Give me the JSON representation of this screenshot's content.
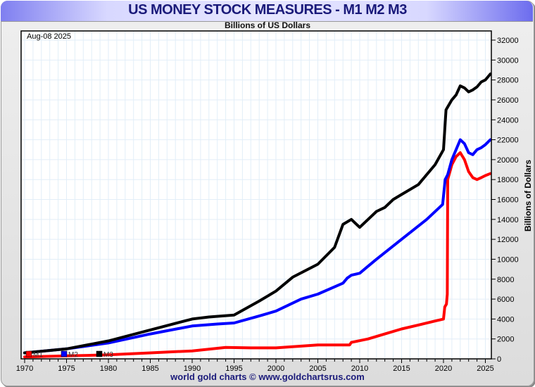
{
  "header": {
    "title": "US MONEY STOCK MEASURES - M1 M2 M3",
    "subtitle": "Billions of US Dollars",
    "date_label": "Aug-08  2025"
  },
  "footer": {
    "credit": "world gold charts © www.goldchartsrus.com"
  },
  "chart_data": {
    "type": "line",
    "title": "US MONEY STOCK MEASURES - M1 M2 M3",
    "subtitle": "Billions of US Dollars",
    "xlabel": "",
    "ylabel": "Billions of Dollars",
    "xlim": [
      1970,
      2026
    ],
    "ylim": [
      0,
      32000
    ],
    "x_ticks": [
      1970,
      1975,
      1980,
      1985,
      1990,
      1995,
      2000,
      2005,
      2010,
      2015,
      2020,
      2025
    ],
    "y_ticks": [
      0,
      2000,
      4000,
      6000,
      8000,
      10000,
      12000,
      14000,
      16000,
      18000,
      20000,
      22000,
      24000,
      26000,
      28000,
      30000,
      32000
    ],
    "grid": true,
    "legend_position": "bottom-left",
    "series": [
      {
        "name": "M1",
        "color": "#ff0000",
        "x": [
          1970,
          1975,
          1980,
          1985,
          1990,
          1994,
          1997,
          2000,
          2005,
          2008.8,
          2009,
          2011,
          2013,
          2015,
          2017,
          2019,
          2020,
          2020.15,
          2020.35,
          2020.45,
          2020.5,
          2021,
          2021.5,
          2022,
          2022.5,
          2023,
          2023.5,
          2024,
          2024.5,
          2025,
          2025.6
        ],
        "y": [
          200,
          300,
          400,
          600,
          800,
          1150,
          1100,
          1100,
          1400,
          1400,
          1650,
          2000,
          2500,
          3000,
          3400,
          3800,
          4000,
          5200,
          5500,
          6500,
          18000,
          19500,
          20300,
          20700,
          20000,
          18800,
          18200,
          18000,
          18200,
          18400,
          18600
        ]
      },
      {
        "name": "M2",
        "color": "#0000ff",
        "x": [
          1970,
          1975,
          1980,
          1985,
          1990,
          1993,
          1995,
          1998,
          2000,
          2003,
          2005,
          2008,
          2008.5,
          2009,
          2010,
          2011,
          2012,
          2015,
          2018,
          2019.9,
          2020.2,
          2020.5,
          2021,
          2021.5,
          2022,
          2022.5,
          2023,
          2023.5,
          2024,
          2024.5,
          2025,
          2025.6
        ],
        "y": [
          600,
          1000,
          1600,
          2500,
          3300,
          3500,
          3600,
          4300,
          4800,
          6000,
          6500,
          7600,
          8100,
          8400,
          8600,
          9300,
          10000,
          12000,
          14000,
          15500,
          18000,
          18500,
          20000,
          21000,
          22000,
          21600,
          20700,
          20500,
          21000,
          21200,
          21500,
          22000
        ]
      },
      {
        "name": "M3",
        "color": "#000000",
        "x": [
          1970,
          1975,
          1980,
          1985,
          1990,
          1992,
          1995,
          1998,
          2000,
          2002,
          2005,
          2007,
          2008,
          2009,
          2010,
          2011,
          2012,
          2013,
          2014,
          2015,
          2017,
          2019,
          2020.0,
          2020.3,
          2021,
          2021.5,
          2022,
          2022.5,
          2023,
          2023.5,
          2024,
          2024.5,
          2025,
          2025.6
        ],
        "y": [
          600,
          1000,
          1800,
          2900,
          4000,
          4200,
          4400,
          5800,
          6800,
          8200,
          9500,
          11200,
          13500,
          14000,
          13200,
          14000,
          14800,
          15200,
          16000,
          16500,
          17500,
          19500,
          21000,
          25000,
          26000,
          26500,
          27400,
          27200,
          26800,
          27000,
          27300,
          27800,
          28000,
          28600
        ]
      }
    ]
  }
}
